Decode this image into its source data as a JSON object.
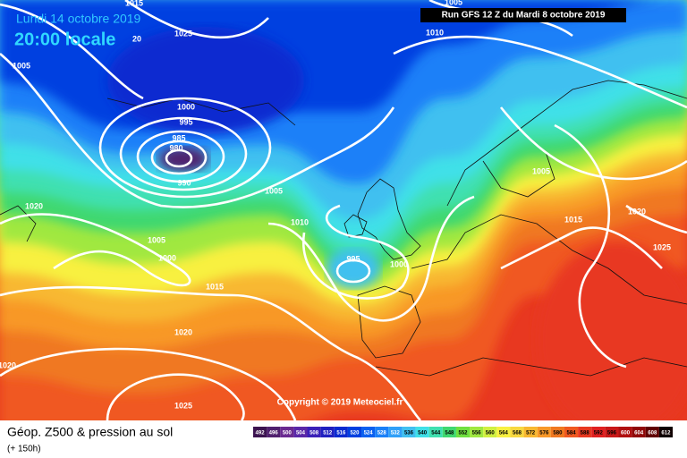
{
  "header": {
    "date": "Lundi 14 octobre 2019",
    "time": "20:00 locale",
    "run": "Run GFS 12 Z du Mardi 8 octobre 2019"
  },
  "copyright": "Copyright © 2019 Meteociel.fr",
  "footer": {
    "title": "Géop. Z500 & pression au sol",
    "lead": "(+ 150h)"
  },
  "legend": {
    "values": [
      492,
      496,
      500,
      504,
      508,
      512,
      516,
      520,
      524,
      528,
      532,
      536,
      540,
      544,
      548,
      552,
      556,
      560,
      564,
      568,
      572,
      576,
      580,
      584,
      588,
      592,
      596,
      600,
      604,
      608,
      612
    ],
    "colors": [
      "#3c1450",
      "#50206e",
      "#6a2a90",
      "#5a28a8",
      "#3a20b8",
      "#2020c0",
      "#0a2ad0",
      "#0040e0",
      "#0a60f0",
      "#1a80f8",
      "#30a0f8",
      "#40c0f0",
      "#40e0e8",
      "#40e0b0",
      "#40d870",
      "#70e040",
      "#a0e840",
      "#d0f040",
      "#f8f040",
      "#f8d840",
      "#f8b830",
      "#f89828",
      "#f07820",
      "#f05820",
      "#e83820",
      "#e02020",
      "#c81818",
      "#b01010",
      "#900808",
      "#600000",
      "#100000"
    ]
  },
  "isobar_labels": [
    "1015",
    "1025",
    "20",
    "1005",
    "1000",
    "995",
    "985",
    "980",
    "990",
    "1005",
    "1010",
    "1020",
    "1005",
    "1000",
    "995",
    "1000",
    "1015",
    "1020",
    "1020",
    "1025",
    "1010",
    "1005",
    "1005",
    "1015",
    "1020",
    "1025"
  ]
}
